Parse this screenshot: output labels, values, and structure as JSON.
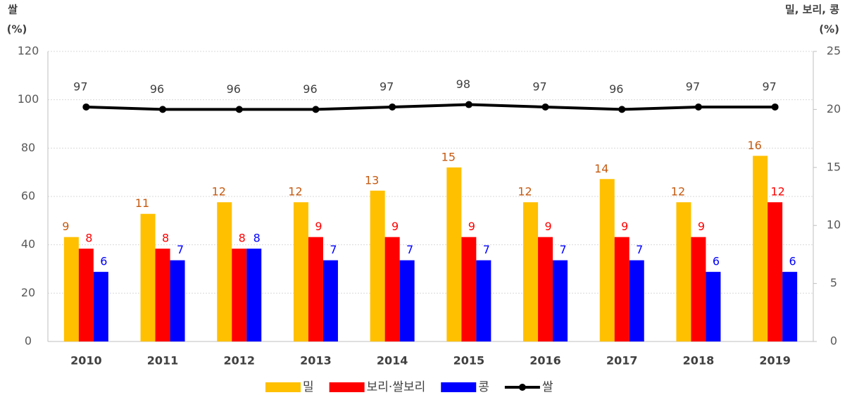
{
  "chart_data": {
    "type": "bar",
    "ylabel": [
      "쌀",
      "(%)"
    ],
    "y2label": [
      "밀, 보리, 콩",
      "(%)"
    ],
    "categories": [
      "2010",
      "2011",
      "2012",
      "2013",
      "2014",
      "2015",
      "2016",
      "2017",
      "2018",
      "2019"
    ],
    "series": [
      {
        "name": "밀",
        "type": "bar",
        "axis": "y2",
        "color": "#ffc000",
        "label_color": "#c55a11",
        "values": [
          9,
          11,
          12,
          12,
          13,
          15,
          12,
          14,
          12,
          16
        ]
      },
      {
        "name": "보리·쌀보리",
        "type": "bar",
        "axis": "y2",
        "color": "#ff0000",
        "label_color": "#ff0000",
        "values": [
          8,
          8,
          8,
          9,
          9,
          9,
          9,
          9,
          9,
          12
        ]
      },
      {
        "name": "콩",
        "type": "bar",
        "axis": "y2",
        "color": "#0000ff",
        "label_color": "#0000ff",
        "values": [
          6,
          7,
          8,
          7,
          7,
          7,
          7,
          7,
          6,
          6
        ]
      },
      {
        "name": "쌀",
        "type": "line",
        "axis": "y",
        "color": "#000000",
        "label_color": "#404040",
        "values": [
          97,
          96,
          96,
          96,
          97,
          98,
          97,
          96,
          97,
          97
        ]
      }
    ],
    "ylim": [
      0,
      120
    ],
    "yticks": [
      0,
      20,
      40,
      60,
      80,
      100,
      120
    ],
    "y2lim": [
      0,
      25
    ],
    "y2ticks": [
      0,
      5,
      10,
      15,
      20,
      25
    ],
    "grid": true
  }
}
